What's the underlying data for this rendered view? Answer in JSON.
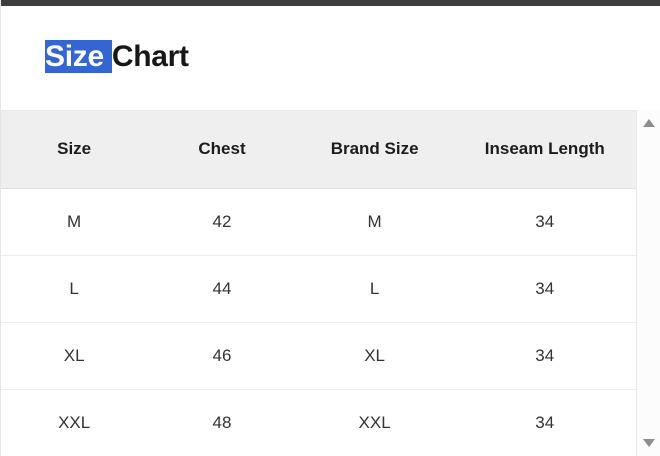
{
  "header": {
    "title_selected": "Size ",
    "title_rest": "Chart",
    "selection_color": "#3565d1"
  },
  "table": {
    "columns": [
      "Size",
      "Chest",
      "Brand Size",
      "Inseam Length"
    ],
    "rows": [
      [
        "M",
        "42",
        "M",
        "34"
      ],
      [
        "L",
        "44",
        "L",
        "34"
      ],
      [
        "XL",
        "46",
        "XL",
        "34"
      ],
      [
        "XXL",
        "48",
        "XXL",
        "34"
      ]
    ]
  },
  "colors": {
    "top_bar": "#3d3d3d",
    "header_row_bg": "#efefef",
    "selection_blue": "#3565d1"
  },
  "scrollbar": {
    "up_icon": "up-triangle",
    "down_icon": "down-triangle"
  }
}
